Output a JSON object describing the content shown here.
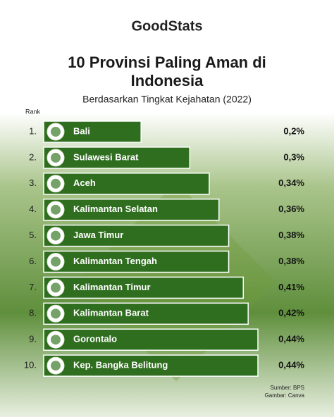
{
  "chart_data": {
    "type": "bar",
    "orientation": "horizontal",
    "brand": "GoodStats",
    "title": "10 Provinsi Paling Aman di Indonesia",
    "subtitle": "Berdasarkan Tingkat Kejahatan (2022)",
    "rank_header": "Rank",
    "ranks": [
      "1.",
      "2.",
      "3.",
      "4.",
      "5.",
      "6.",
      "7.",
      "8.",
      "9.",
      "10."
    ],
    "categories": [
      "Bali",
      "Sulawesi Barat",
      "Aceh",
      "Kalimantan Selatan",
      "Jawa Timur",
      "Kalimantan Tengah",
      "Kalimantan Timur",
      "Kalimantan Barat",
      "Gorontalo",
      "Kep. Bangka Belitung"
    ],
    "values": [
      0.2,
      0.3,
      0.34,
      0.36,
      0.38,
      0.38,
      0.41,
      0.42,
      0.44,
      0.44
    ],
    "value_labels": [
      "0,2%",
      "0,3%",
      "0,34%",
      "0,36%",
      "0,38%",
      "0,38%",
      "0,41%",
      "0,42%",
      "0,44%",
      "0,44%"
    ],
    "color": "#2f6e1f",
    "source": "Sumber: BPS",
    "image_credit": "Gambar: Canva"
  }
}
